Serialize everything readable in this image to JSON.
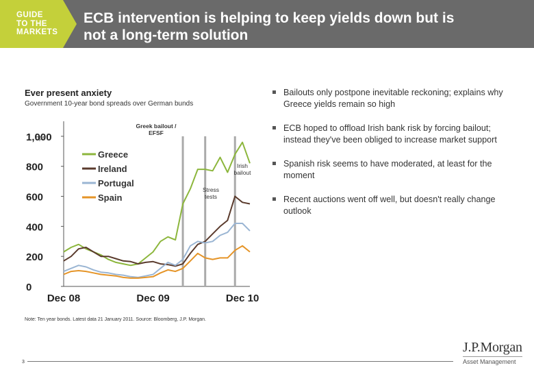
{
  "header": {
    "badge_lines": [
      "GUIDE",
      "TO THE",
      "MARKETS"
    ],
    "title_lines": [
      "ECB intervention is helping to keep yields down but is",
      "not a long-term solution"
    ]
  },
  "chart_title": "Ever present anxiety",
  "chart_subtitle": "Government 10-year bond spreads over German bunds",
  "chart_data": {
    "type": "line",
    "x": [
      "Dec 08",
      "Jan 09",
      "Feb 09",
      "Mar 09",
      "Apr 09",
      "May 09",
      "Jun 09",
      "Jul 09",
      "Aug 09",
      "Sep 09",
      "Oct 09",
      "Nov 09",
      "Dec 09",
      "Jan 10",
      "Feb 10",
      "Mar 10",
      "Apr 10",
      "May 10",
      "Jun 10",
      "Jul 10",
      "Aug 10",
      "Sep 10",
      "Oct 10",
      "Nov 10",
      "Dec 10",
      "Jan 11"
    ],
    "x_ticks": [
      "Dec 08",
      "Dec 09",
      "Dec 10"
    ],
    "ylim": [
      0,
      1100
    ],
    "yticks": [
      0,
      200,
      400,
      600,
      800,
      1000
    ],
    "ytick_labels": [
      "0",
      "200",
      "400",
      "600",
      "800",
      "1,000"
    ],
    "y_unit": "bps",
    "series": [
      {
        "name": "Greece",
        "color": "#8cb63c",
        "values": [
          230,
          260,
          280,
          250,
          230,
          210,
          180,
          160,
          150,
          140,
          150,
          190,
          230,
          300,
          330,
          310,
          550,
          650,
          780,
          780,
          770,
          860,
          760,
          880,
          960,
          820
        ]
      },
      {
        "name": "Ireland",
        "color": "#5a3a2c",
        "values": [
          170,
          200,
          250,
          260,
          230,
          200,
          200,
          185,
          170,
          165,
          150,
          160,
          165,
          150,
          145,
          135,
          150,
          220,
          280,
          300,
          350,
          400,
          440,
          600,
          560,
          550
        ]
      },
      {
        "name": "Portugal",
        "color": "#9ab5d3",
        "values": [
          100,
          120,
          140,
          130,
          110,
          95,
          90,
          80,
          75,
          65,
          60,
          70,
          80,
          120,
          160,
          140,
          180,
          270,
          300,
          290,
          300,
          340,
          360,
          420,
          420,
          370
        ]
      },
      {
        "name": "Spain",
        "color": "#e59427",
        "values": [
          80,
          100,
          105,
          100,
          90,
          80,
          75,
          70,
          60,
          55,
          55,
          60,
          65,
          90,
          110,
          100,
          120,
          170,
          220,
          190,
          180,
          190,
          190,
          240,
          270,
          230
        ]
      }
    ],
    "annotations": [
      {
        "text": [
          "Greek bailout /",
          "EFSF"
        ],
        "x": "Apr 10"
      },
      {
        "text": [
          "Stress",
          "tests"
        ],
        "x": "Jul 10"
      },
      {
        "text": [
          "Irish",
          "bailout"
        ],
        "x": "Nov 10"
      }
    ],
    "vlines": [
      "Apr 10",
      "Jul 10",
      "Nov 10"
    ]
  },
  "bullets": [
    "Bailouts only postpone inevitable reckoning; explains why Greece yields remain so high",
    "ECB hoped to offload Irish bank risk by forcing bailout; instead they've been obliged to increase market support",
    "Spanish risk seems to have moderated, at least for the moment",
    "Recent auctions went off well, but doesn't really change outlook"
  ],
  "footnote": "Note: Ten year bonds. Latest data 21 January 2011. Source: Bloomberg, J.P. Morgan.",
  "page_number": "3",
  "logo": {
    "name": "J.P.Morgan",
    "sub": "Asset Management"
  }
}
